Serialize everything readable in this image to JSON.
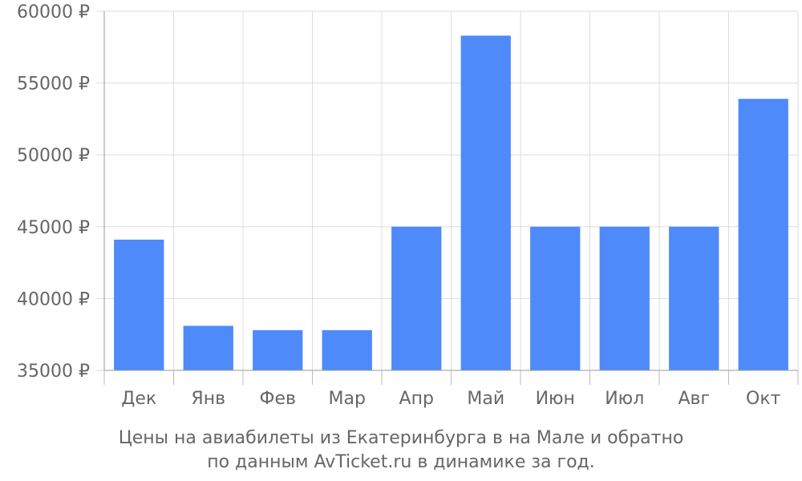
{
  "chart_data": {
    "type": "bar",
    "categories": [
      "Дек",
      "Янв",
      "Фев",
      "Мар",
      "Апр",
      "Май",
      "Июн",
      "Июл",
      "Авг",
      "Окт"
    ],
    "values": [
      44100,
      38100,
      37800,
      37800,
      45000,
      58300,
      45000,
      45000,
      45000,
      53900
    ],
    "ylim": [
      35000,
      60000
    ],
    "yticks": [
      35000,
      40000,
      45000,
      50000,
      55000,
      60000
    ],
    "ytick_labels": [
      "35000 ₽",
      "40000 ₽",
      "45000 ₽",
      "50000 ₽",
      "55000 ₽",
      "60000 ₽"
    ],
    "grid": true,
    "bar_color": "#4e8af9"
  },
  "caption": {
    "line1": "Цены на авиабилеты из Екатеринбурга в на Мале и обратно",
    "line2": "по данным AvTicket.ru в динамике за год."
  }
}
